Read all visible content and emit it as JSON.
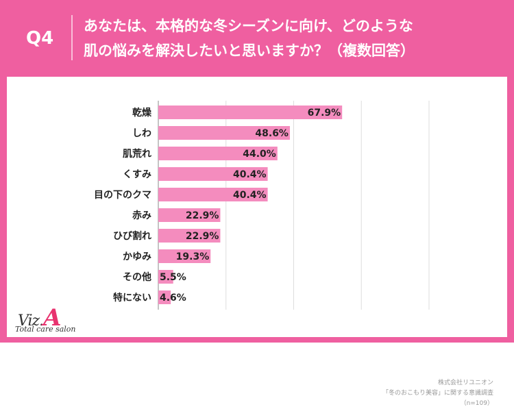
{
  "header": {
    "question_number": "Q4",
    "question_line1": "あなたは、本格的な冬シーズンに向け、どのような",
    "question_line2": "肌の悩みを解決したいと思いますか？（複数回答）"
  },
  "colors": {
    "accent": "#ef5fa0",
    "bar": "#f48cbe",
    "grid": "#dddddd",
    "text": "#222222"
  },
  "chart_data": {
    "type": "bar",
    "orientation": "horizontal",
    "categories": [
      "乾燥",
      "しわ",
      "肌荒れ",
      "くすみ",
      "目の下のクマ",
      "赤み",
      "ひび割れ",
      "かゆみ",
      "その他",
      "特にない"
    ],
    "values": [
      67.9,
      48.6,
      44.0,
      40.4,
      40.4,
      22.9,
      22.9,
      19.3,
      5.5,
      4.6
    ],
    "value_labels": [
      "67.9%",
      "48.6%",
      "44.0%",
      "40.4%",
      "40.4%",
      "22.9%",
      "22.9%",
      "19.3%",
      "5.5%",
      "4.6%"
    ],
    "xlim": [
      0,
      100
    ],
    "grid": true
  },
  "footer": {
    "source_line1": "株式会社リユニオン",
    "source_line2": "「冬のおこもり美容」に関する意識調査",
    "source_line3": "（n=109）"
  },
  "logo": {
    "main_text": "Viz.",
    "accent_letter": "A",
    "tagline": "Total care salon"
  }
}
